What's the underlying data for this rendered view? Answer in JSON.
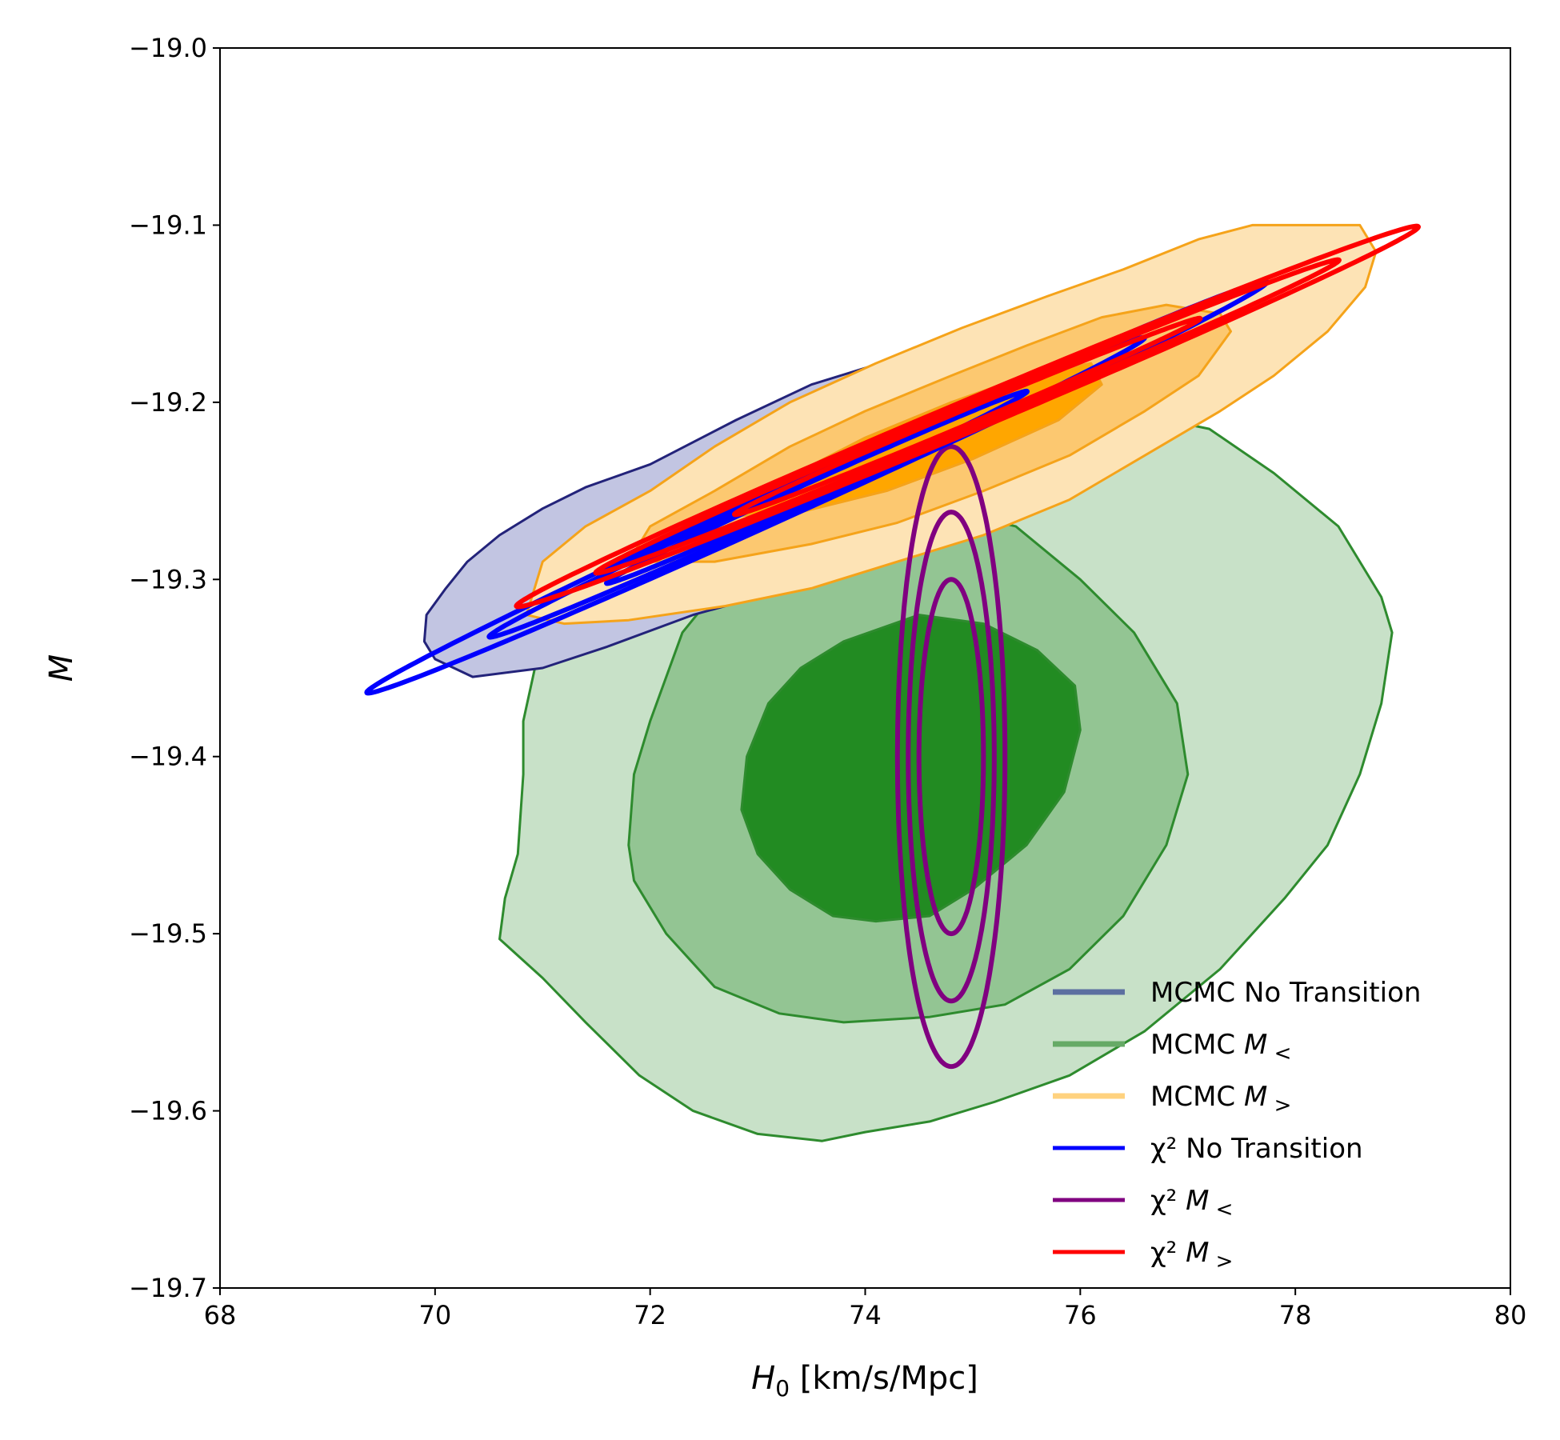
{
  "chart_data": {
    "type": "contour",
    "xlabel": "H_0 [km/s/Mpc]",
    "xlabel_main": "H",
    "xlabel_sub": "0",
    "xlabel_rest": " [km/s/Mpc]",
    "ylabel": "M",
    "xlim": [
      68,
      80
    ],
    "ylim": [
      -19.7,
      -19.0
    ],
    "xticks": [
      68,
      70,
      72,
      74,
      76,
      78,
      80
    ],
    "xtick_labels": [
      "68",
      "70",
      "72",
      "74",
      "76",
      "78",
      "80"
    ],
    "yticks": [
      -19.7,
      -19.6,
      -19.5,
      -19.4,
      -19.3,
      -19.2,
      -19.1,
      -19.0
    ],
    "ytick_labels": [
      "−19.7",
      "−19.6",
      "−19.5",
      "−19.4",
      "−19.3",
      "−19.2",
      "−19.1",
      "−19.0"
    ],
    "grid": false,
    "legend_position": "lower-right",
    "legend": [
      {
        "key": "mcmc_no",
        "main": "MCMC No Transition",
        "italic": "",
        "sub": "",
        "color": "#5c6fa0",
        "style": "thick-alpha"
      },
      {
        "key": "mcmc_lt",
        "main": "MCMC ",
        "italic": "M",
        "sub": "<",
        "color": "#66aa66",
        "style": "thick-alpha"
      },
      {
        "key": "mcmc_gt",
        "main": "MCMC ",
        "italic": "M",
        "sub": ">",
        "color": "#ffd27f",
        "style": "thick-alpha"
      },
      {
        "key": "chi_no",
        "main": "χ² No Transition",
        "italic": "",
        "sub": "",
        "color": "#0000ff",
        "style": "line"
      },
      {
        "key": "chi_lt",
        "main": "χ² ",
        "italic": "M",
        "sub": "<",
        "color": "#800080",
        "style": "line"
      },
      {
        "key": "chi_gt",
        "main": "χ² ",
        "italic": "M",
        "sub": ">",
        "color": "#ff0000",
        "style": "line"
      }
    ],
    "mcmc_contours": [
      {
        "name": "MCMC M_<",
        "edge": "#2e8b2e",
        "fills": [
          "#c8e1c8",
          "#93c593",
          "#228b22"
        ],
        "levels": [
          [
            [
              70.6,
              -19.503
            ],
            [
              70.65,
              -19.48
            ],
            [
              70.77,
              -19.455
            ],
            [
              70.82,
              -19.41
            ],
            [
              70.82,
              -19.38
            ],
            [
              71.0,
              -19.33
            ],
            [
              71.3,
              -19.3
            ],
            [
              71.7,
              -19.27
            ],
            [
              72.2,
              -19.245
            ],
            [
              72.8,
              -19.225
            ],
            [
              73.5,
              -19.21
            ],
            [
              74.5,
              -19.205
            ],
            [
              75.5,
              -19.203
            ],
            [
              76.4,
              -19.205
            ],
            [
              77.2,
              -19.215
            ],
            [
              77.8,
              -19.24
            ],
            [
              78.4,
              -19.27
            ],
            [
              78.8,
              -19.31
            ],
            [
              78.9,
              -19.33
            ],
            [
              78.8,
              -19.37
            ],
            [
              78.6,
              -19.41
            ],
            [
              78.3,
              -19.45
            ],
            [
              77.9,
              -19.48
            ],
            [
              77.3,
              -19.52
            ],
            [
              76.6,
              -19.555
            ],
            [
              75.9,
              -19.58
            ],
            [
              75.2,
              -19.595
            ],
            [
              74.6,
              -19.606
            ],
            [
              74.0,
              -19.612
            ],
            [
              73.6,
              -19.617
            ],
            [
              73.0,
              -19.613
            ],
            [
              72.4,
              -19.6
            ],
            [
              71.9,
              -19.58
            ],
            [
              71.4,
              -19.55
            ],
            [
              71.0,
              -19.525
            ],
            [
              70.6,
              -19.503
            ]
          ],
          [
            [
              71.8,
              -19.45
            ],
            [
              71.85,
              -19.41
            ],
            [
              72.0,
              -19.38
            ],
            [
              72.3,
              -19.33
            ],
            [
              72.7,
              -19.3
            ],
            [
              73.3,
              -19.275
            ],
            [
              74.0,
              -19.26
            ],
            [
              74.7,
              -19.26
            ],
            [
              75.4,
              -19.27
            ],
            [
              76.0,
              -19.3
            ],
            [
              76.5,
              -19.33
            ],
            [
              76.9,
              -19.37
            ],
            [
              77.0,
              -19.41
            ],
            [
              76.8,
              -19.45
            ],
            [
              76.4,
              -19.49
            ],
            [
              75.9,
              -19.52
            ],
            [
              75.3,
              -19.54
            ],
            [
              74.6,
              -19.547
            ],
            [
              73.8,
              -19.55
            ],
            [
              73.2,
              -19.545
            ],
            [
              72.6,
              -19.53
            ],
            [
              72.15,
              -19.5
            ],
            [
              71.85,
              -19.47
            ],
            [
              71.8,
              -19.45
            ]
          ],
          [
            [
              72.85,
              -19.43
            ],
            [
              72.9,
              -19.4
            ],
            [
              73.1,
              -19.37
            ],
            [
              73.4,
              -19.35
            ],
            [
              73.8,
              -19.335
            ],
            [
              74.5,
              -19.32
            ],
            [
              75.1,
              -19.325
            ],
            [
              75.6,
              -19.34
            ],
            [
              75.95,
              -19.36
            ],
            [
              76.0,
              -19.385
            ],
            [
              75.85,
              -19.42
            ],
            [
              75.5,
              -19.45
            ],
            [
              75.0,
              -19.475
            ],
            [
              74.6,
              -19.49
            ],
            [
              74.1,
              -19.493
            ],
            [
              73.7,
              -19.49
            ],
            [
              73.3,
              -19.475
            ],
            [
              73.0,
              -19.455
            ],
            [
              72.85,
              -19.43
            ]
          ]
        ]
      },
      {
        "name": "MCMC No Transition",
        "edge": "#23237a",
        "fills": [
          "#c2c5e2",
          "#aab0d8",
          "#8f97cc"
        ],
        "levels": [
          [
            [
              70.35,
              -19.355
            ],
            [
              70.0,
              -19.345
            ],
            [
              69.9,
              -19.335
            ],
            [
              69.92,
              -19.32
            ],
            [
              70.1,
              -19.305
            ],
            [
              70.3,
              -19.29
            ],
            [
              70.6,
              -19.275
            ],
            [
              71.0,
              -19.26
            ],
            [
              71.4,
              -19.248
            ],
            [
              72.0,
              -19.235
            ],
            [
              72.8,
              -19.21
            ],
            [
              73.5,
              -19.19
            ],
            [
              74.3,
              -19.175
            ],
            [
              75.1,
              -19.165
            ],
            [
              75.8,
              -19.16
            ],
            [
              76.5,
              -19.155
            ],
            [
              76.9,
              -19.165
            ],
            [
              77.1,
              -19.18
            ],
            [
              76.95,
              -19.2
            ],
            [
              76.5,
              -19.225
            ],
            [
              75.8,
              -19.245
            ],
            [
              75.0,
              -19.265
            ],
            [
              74.2,
              -19.285
            ],
            [
              73.3,
              -19.305
            ],
            [
              72.4,
              -19.32
            ],
            [
              71.6,
              -19.338
            ],
            [
              71.0,
              -19.35
            ],
            [
              70.35,
              -19.355
            ]
          ],
          [
            [
              70.95,
              -19.31
            ],
            [
              71.2,
              -19.29
            ],
            [
              71.8,
              -19.27
            ],
            [
              72.6,
              -19.245
            ],
            [
              73.4,
              -19.225
            ],
            [
              74.2,
              -19.205
            ],
            [
              75.0,
              -19.19
            ],
            [
              75.6,
              -19.18
            ],
            [
              75.8,
              -19.19
            ],
            [
              75.5,
              -19.21
            ],
            [
              74.8,
              -19.23
            ],
            [
              74.0,
              -19.25
            ],
            [
              73.2,
              -19.27
            ],
            [
              72.4,
              -19.29
            ],
            [
              71.7,
              -19.305
            ],
            [
              71.1,
              -19.318
            ],
            [
              70.95,
              -19.31
            ]
          ],
          [
            [
              71.6,
              -19.3
            ],
            [
              72.2,
              -19.28
            ],
            [
              73.0,
              -19.258
            ],
            [
              73.8,
              -19.238
            ],
            [
              74.6,
              -19.22
            ],
            [
              75.1,
              -19.212
            ],
            [
              75.0,
              -19.222
            ],
            [
              74.3,
              -19.24
            ],
            [
              73.5,
              -19.26
            ],
            [
              72.7,
              -19.28
            ],
            [
              72.0,
              -19.296
            ],
            [
              71.6,
              -19.3
            ]
          ]
        ]
      },
      {
        "name": "MCMC M_>",
        "edge": "#f5a31a",
        "fills": [
          "#fde3b5",
          "#fcc870",
          "#ffa600"
        ],
        "levels": [
          [
            [
              70.85,
              -19.32
            ],
            [
              71.0,
              -19.29
            ],
            [
              71.4,
              -19.27
            ],
            [
              72.0,
              -19.25
            ],
            [
              72.6,
              -19.225
            ],
            [
              73.3,
              -19.2
            ],
            [
              74.1,
              -19.178
            ],
            [
              74.9,
              -19.158
            ],
            [
              75.7,
              -19.14
            ],
            [
              76.4,
              -19.125
            ],
            [
              77.1,
              -19.108
            ],
            [
              77.6,
              -19.1
            ],
            [
              78.6,
              -19.1
            ],
            [
              78.75,
              -19.115
            ],
            [
              78.65,
              -19.135
            ],
            [
              78.3,
              -19.16
            ],
            [
              77.8,
              -19.185
            ],
            [
              77.3,
              -19.205
            ],
            [
              76.6,
              -19.23
            ],
            [
              75.9,
              -19.255
            ],
            [
              75.1,
              -19.275
            ],
            [
              74.3,
              -19.29
            ],
            [
              73.5,
              -19.305
            ],
            [
              72.7,
              -19.315
            ],
            [
              71.8,
              -19.323
            ],
            [
              71.2,
              -19.325
            ],
            [
              70.85,
              -19.32
            ]
          ],
          [
            [
              71.8,
              -19.29
            ],
            [
              72.0,
              -19.27
            ],
            [
              72.6,
              -19.25
            ],
            [
              73.3,
              -19.225
            ],
            [
              74.0,
              -19.205
            ],
            [
              74.8,
              -19.185
            ],
            [
              75.5,
              -19.168
            ],
            [
              76.2,
              -19.152
            ],
            [
              76.8,
              -19.145
            ],
            [
              77.3,
              -19.15
            ],
            [
              77.4,
              -19.16
            ],
            [
              77.1,
              -19.185
            ],
            [
              76.6,
              -19.205
            ],
            [
              75.9,
              -19.23
            ],
            [
              75.1,
              -19.25
            ],
            [
              74.3,
              -19.268
            ],
            [
              73.5,
              -19.28
            ],
            [
              72.6,
              -19.29
            ],
            [
              71.8,
              -19.29
            ]
          ],
          [
            [
              72.6,
              -19.265
            ],
            [
              73.2,
              -19.245
            ],
            [
              74.0,
              -19.22
            ],
            [
              74.8,
              -19.2
            ],
            [
              75.5,
              -19.185
            ],
            [
              76.1,
              -19.178
            ],
            [
              76.2,
              -19.19
            ],
            [
              75.8,
              -19.21
            ],
            [
              75.0,
              -19.232
            ],
            [
              74.2,
              -19.25
            ],
            [
              73.4,
              -19.262
            ],
            [
              72.6,
              -19.265
            ]
          ]
        ]
      }
    ],
    "chi2_ellipses": [
      {
        "name": "χ² M_<",
        "color": "#800080",
        "center": [
          74.8,
          -19.4
        ],
        "angle_deg": 0,
        "semi_x": [
          0.3,
          0.4,
          0.5
        ],
        "semi_y": [
          0.1,
          0.138,
          0.175
        ]
      },
      {
        "name": "χ² No Transition",
        "color": "#0000ff",
        "center": [
          73.55,
          -19.248
        ],
        "angle_deg": 24.5,
        "semi_x": [
          2.15,
          3.35,
          4.6
        ],
        "semi_y": [
          0.0045,
          0.007,
          0.0095
        ]
      },
      {
        "name": "χ² M_>",
        "color": "#ff0000",
        "center": [
          74.95,
          -19.208
        ],
        "angle_deg": 22.8,
        "semi_x": [
          2.35,
          3.75,
          4.55
        ],
        "semi_y": [
          0.0045,
          0.007,
          0.0095
        ]
      }
    ]
  }
}
